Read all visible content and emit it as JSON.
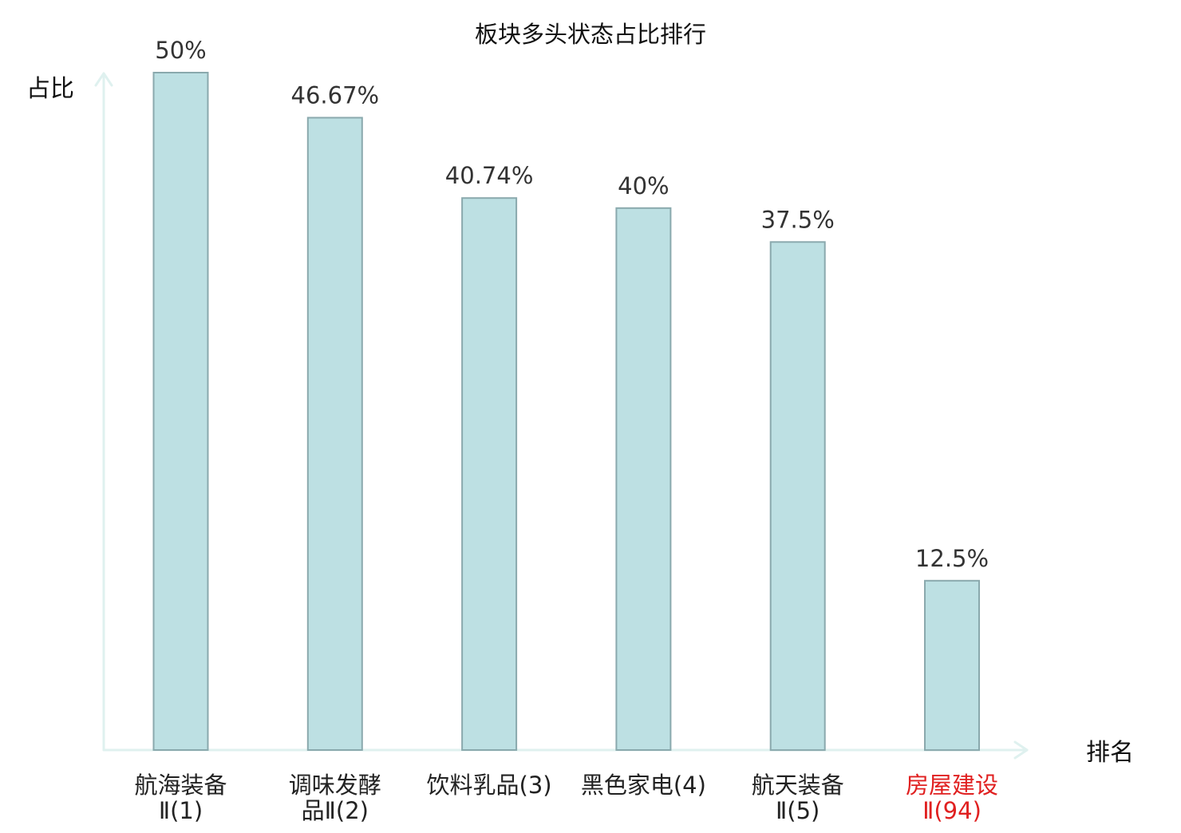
{
  "chart_data": {
    "type": "bar",
    "title": "板块多头状态占比排行",
    "ylabel": "占比",
    "xlabel": "排名",
    "ylim": [
      0,
      50
    ],
    "grid": false,
    "legend": "none",
    "categories": [
      [
        "航海装备",
        "Ⅱ(1)"
      ],
      [
        "调味发酵",
        "品Ⅱ(2)"
      ],
      [
        "饮料乳品(3)"
      ],
      [
        "黑色家电(4)"
      ],
      [
        "航天装备",
        "Ⅱ(5)"
      ],
      [
        "房屋建设",
        "Ⅱ(94)"
      ]
    ],
    "values": [
      50,
      46.67,
      40.74,
      40,
      37.5,
      12.5
    ],
    "value_labels": [
      "50%",
      "46.67%",
      "40.74%",
      "40%",
      "37.5%",
      "12.5%"
    ],
    "highlight_index": 5,
    "colors": {
      "bar_fill": "#bde0e3",
      "bar_stroke": "#8aa9ad",
      "axis": "#dff1ef",
      "text": "#222222",
      "highlight": "#e02020"
    }
  }
}
